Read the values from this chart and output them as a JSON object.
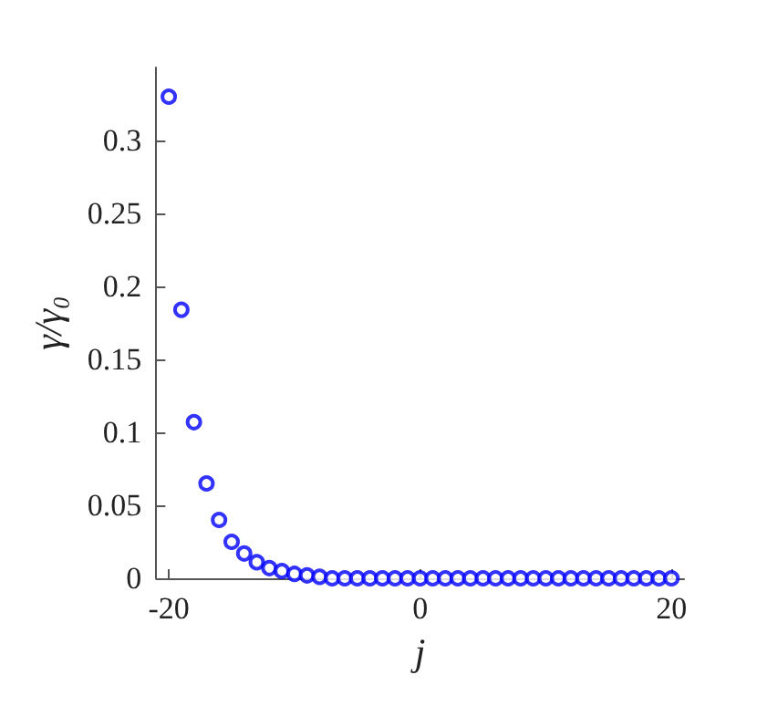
{
  "chart_data": {
    "type": "scatter",
    "xlabel": "j",
    "ylabel": "γ/γ₀",
    "marker": "circle",
    "grid": false,
    "x": [
      -20,
      -19,
      -18,
      -17,
      -16,
      -15,
      -14,
      -13,
      -12,
      -11,
      -10,
      -9,
      -8,
      -7,
      -6,
      -5,
      -4,
      -3,
      -2,
      -1,
      0,
      1,
      2,
      3,
      4,
      5,
      6,
      7,
      8,
      9,
      10,
      11,
      12,
      13,
      14,
      15,
      16,
      17,
      18,
      19,
      20
    ],
    "series": [
      {
        "color": "#0000ff",
        "values": [
          0.33,
          0.184,
          0.107,
          0.065,
          0.04,
          0.025,
          0.017,
          0.011,
          0.007,
          0.005,
          0.003,
          0.002,
          0.001,
          0,
          0,
          0,
          0,
          0,
          0,
          0,
          0,
          0,
          0,
          0,
          0,
          0,
          0,
          0,
          0,
          0,
          0,
          0,
          0,
          0,
          0,
          0,
          0,
          0,
          0,
          0,
          0
        ]
      }
    ],
    "xlim": [
      -21,
      21
    ],
    "xticks": [
      -20,
      0,
      20
    ],
    "ylim": [
      0,
      0.35
    ],
    "yticks": [
      0,
      0.05,
      0.1,
      0.15,
      0.2,
      0.25,
      0.3
    ]
  }
}
